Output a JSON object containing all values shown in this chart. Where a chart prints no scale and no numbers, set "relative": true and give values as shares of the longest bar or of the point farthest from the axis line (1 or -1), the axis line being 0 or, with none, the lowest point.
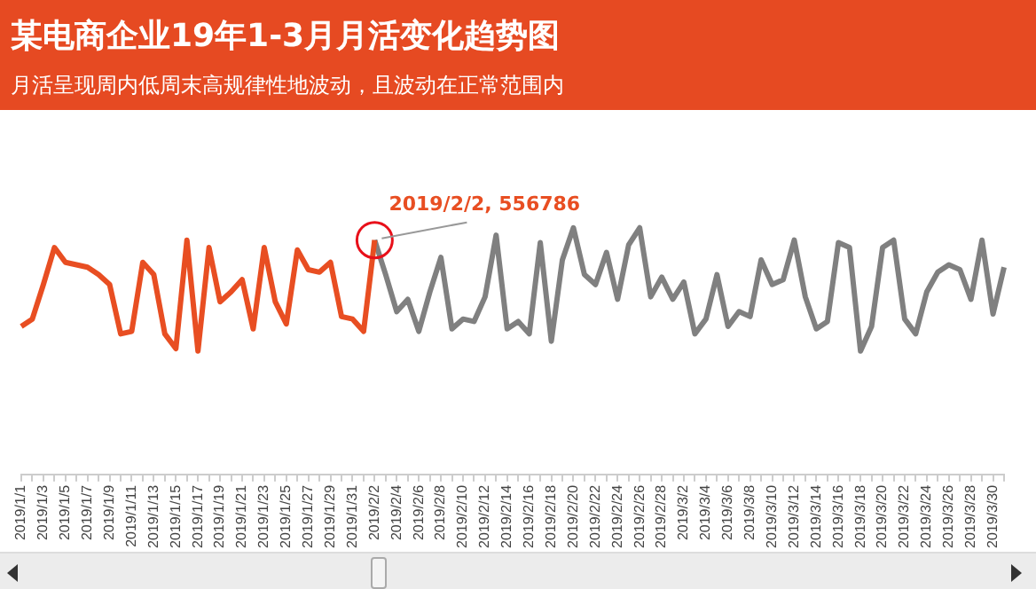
{
  "chart_data": {
    "type": "line",
    "relative": true,
    "title": "某电商企业19年1-3月月活变化趋势图",
    "subtitle": "月活呈现周内低周末高规律性地波动，且波动在正常范围内",
    "categories": [
      "2019/1/1",
      null,
      "2019/1/3",
      null,
      "2019/1/5",
      null,
      "2019/1/7",
      null,
      "2019/1/9",
      null,
      "2019/1/11",
      null,
      "2019/1/13",
      null,
      "2019/1/15",
      null,
      "2019/1/17",
      null,
      "2019/1/19",
      null,
      "2019/1/21",
      null,
      "2019/1/23",
      null,
      "2019/1/25",
      null,
      "2019/1/27",
      null,
      "2019/1/29",
      null,
      "2019/1/31",
      null,
      "2019/2/2",
      null,
      "2019/2/4",
      null,
      "2019/2/6",
      null,
      "2019/2/8",
      null,
      "2019/2/10",
      null,
      "2019/2/12",
      null,
      "2019/2/14",
      null,
      "2019/2/16",
      null,
      "2019/2/18",
      null,
      "2019/2/20",
      null,
      "2019/2/22",
      null,
      "2019/2/24",
      null,
      "2019/2/26",
      null,
      "2019/2/28",
      null,
      "2019/3/2",
      null,
      "2019/3/4",
      null,
      "2019/3/6",
      null,
      "2019/3/8",
      null,
      "2019/3/10",
      null,
      "2019/3/12",
      null,
      "2019/3/14",
      null,
      "2019/3/16",
      null,
      "2019/3/18",
      null,
      "2019/3/20",
      null,
      "2019/3/22",
      null,
      "2019/3/24",
      null,
      "2019/3/26",
      null,
      "2019/3/28",
      null,
      "2019/3/30",
      null
    ],
    "series": [
      {
        "color": "#e84e22",
        "values": [
          0.6,
          0.63,
          0.77,
          0.92,
          0.86,
          0.85,
          0.84,
          0.81,
          0.77,
          0.57,
          0.58,
          0.86,
          0.81,
          0.57,
          0.51,
          0.95,
          0.5,
          0.92,
          0.7,
          0.74,
          0.79,
          0.59,
          0.92,
          0.7,
          0.61,
          0.91,
          0.83,
          0.82,
          0.86,
          0.64,
          0.63,
          0.58,
          0.95,
          null,
          null,
          null,
          null,
          null,
          null,
          null,
          null,
          null,
          null,
          null,
          null,
          null,
          null,
          null,
          null,
          null,
          null,
          null,
          null,
          null,
          null,
          null,
          null,
          null,
          null,
          null,
          null,
          null,
          null,
          null,
          null,
          null,
          null,
          null,
          null,
          null,
          null,
          null,
          null,
          null,
          null,
          null,
          null,
          null,
          null,
          null,
          null,
          null,
          null,
          null,
          null,
          null,
          null,
          null,
          null,
          null
        ]
      },
      {
        "color": "#808080",
        "values": [
          null,
          null,
          null,
          null,
          null,
          null,
          null,
          null,
          null,
          null,
          null,
          null,
          null,
          null,
          null,
          null,
          null,
          null,
          null,
          null,
          null,
          null,
          null,
          null,
          null,
          null,
          null,
          null,
          null,
          null,
          null,
          null,
          0.95,
          0.81,
          0.66,
          0.71,
          0.58,
          0.74,
          0.88,
          0.59,
          0.63,
          0.62,
          0.72,
          0.97,
          0.59,
          0.62,
          0.57,
          0.94,
          0.54,
          0.87,
          1,
          0.81,
          0.77,
          0.9,
          0.71,
          0.93,
          1,
          0.72,
          0.8,
          0.71,
          0.78,
          0.57,
          0.63,
          0.81,
          0.6,
          0.66,
          0.64,
          0.87,
          0.77,
          0.79,
          0.95,
          0.72,
          0.59,
          0.62,
          0.94,
          0.92,
          0.5,
          0.6,
          0.92,
          0.95,
          0.63,
          0.57,
          0.74,
          0.82,
          0.85,
          0.83,
          0.71,
          0.95,
          0.65,
          0.84
        ]
      }
    ],
    "annotations": [
      {
        "text": "2019/2/2, 556786",
        "x": "2019/2/2",
        "y": 0.95
      }
    ],
    "grid": false,
    "legend": false
  }
}
